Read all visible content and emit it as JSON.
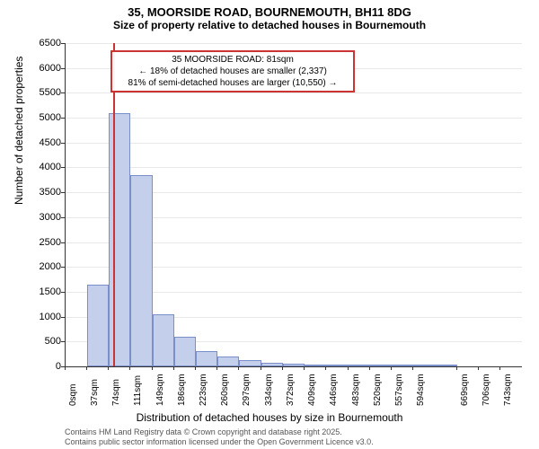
{
  "title": "35, MOORSIDE ROAD, BOURNEMOUTH, BH11 8DG",
  "subtitle": "Size of property relative to detached houses in Bournemouth",
  "chart": {
    "type": "histogram",
    "xlabel": "Distribution of detached houses by size in Bournemouth",
    "ylabel": "Number of detached properties",
    "title_fontsize": 13,
    "subtitle_fontsize": 12,
    "label_fontsize": 12,
    "tick_fontsize": 11,
    "background_color": "#ffffff",
    "grid_color": "#e8e8e8",
    "bar_fill_color": "#c4cfeb",
    "bar_border_color": "#7a8fc9",
    "ylim": [
      0,
      6500
    ],
    "ytick_step": 500,
    "yticks": [
      0,
      500,
      1000,
      1500,
      2000,
      2500,
      3000,
      3500,
      4000,
      4500,
      5000,
      5500,
      6000,
      6500
    ],
    "xtick_labels": [
      "0sqm",
      "37sqm",
      "74sqm",
      "111sqm",
      "149sqm",
      "186sqm",
      "223sqm",
      "260sqm",
      "297sqm",
      "334sqm",
      "372sqm",
      "409sqm",
      "446sqm",
      "483sqm",
      "520sqm",
      "557sqm",
      "594sqm",
      "669sqm",
      "706sqm",
      "743sqm"
    ],
    "bins": [
      {
        "x_start": 0,
        "x_end": 37,
        "count": 0
      },
      {
        "x_start": 37,
        "x_end": 74,
        "count": 1650
      },
      {
        "x_start": 74,
        "x_end": 111,
        "count": 5100
      },
      {
        "x_start": 111,
        "x_end": 149,
        "count": 3850
      },
      {
        "x_start": 149,
        "x_end": 186,
        "count": 1050
      },
      {
        "x_start": 186,
        "x_end": 223,
        "count": 600
      },
      {
        "x_start": 223,
        "x_end": 260,
        "count": 300
      },
      {
        "x_start": 260,
        "x_end": 297,
        "count": 200
      },
      {
        "x_start": 297,
        "x_end": 334,
        "count": 120
      },
      {
        "x_start": 334,
        "x_end": 372,
        "count": 80
      },
      {
        "x_start": 372,
        "x_end": 409,
        "count": 50
      },
      {
        "x_start": 409,
        "x_end": 446,
        "count": 30
      },
      {
        "x_start": 446,
        "x_end": 483,
        "count": 10
      },
      {
        "x_start": 483,
        "x_end": 520,
        "count": 8
      },
      {
        "x_start": 520,
        "x_end": 557,
        "count": 5
      },
      {
        "x_start": 557,
        "x_end": 594,
        "count": 3
      },
      {
        "x_start": 594,
        "x_end": 669,
        "count": 2
      },
      {
        "x_start": 669,
        "x_end": 706,
        "count": 0
      },
      {
        "x_start": 706,
        "x_end": 743,
        "count": 0
      },
      {
        "x_start": 743,
        "x_end": 780,
        "count": 0
      }
    ],
    "x_max": 780,
    "marker": {
      "value": 81,
      "color": "#cc3333",
      "line_width": 2
    },
    "annotation": {
      "line1": "35 MOORSIDE ROAD: 81sqm",
      "line2": "← 18% of detached houses are smaller (2,337)",
      "line3": "81% of semi-detached houses are larger (10,550) →",
      "border_color": "#cc3333",
      "bg_color": "#ffffff",
      "fontsize": 10
    }
  },
  "attribution": {
    "line1": "Contains HM Land Registry data © Crown copyright and database right 2025.",
    "line2": "Contains public sector information licensed under the Open Government Licence v3.0."
  }
}
